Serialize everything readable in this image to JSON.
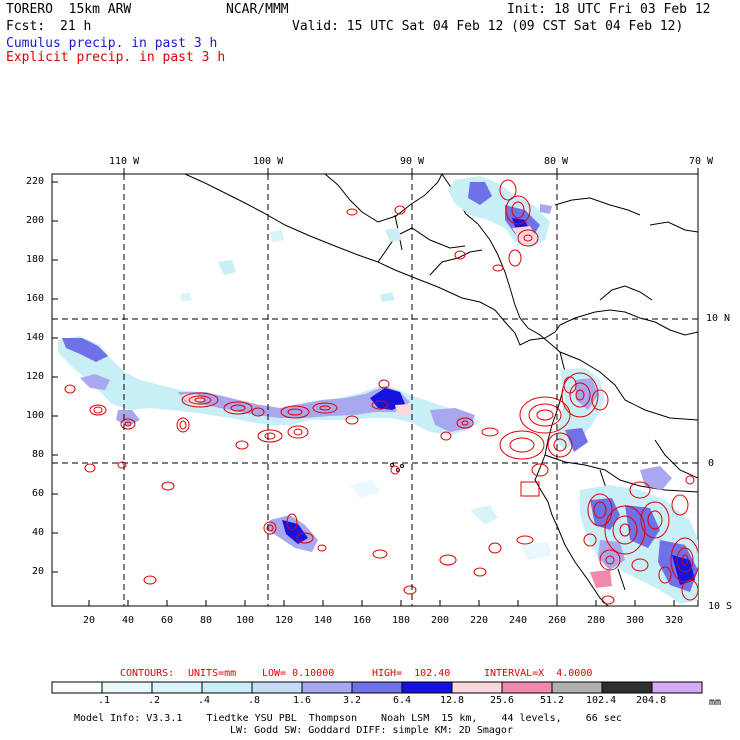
{
  "header": {
    "model": "TORERO  15km ARW",
    "org": "NCAR/MMM",
    "init": "Init: 18 UTC Fri 03 Feb 12",
    "fcst_label": "Fcst:",
    "fcst_value": "21 h",
    "valid": "Valid: 15 UTC Sat 04 Feb 12 (09 CST Sat 04 Feb 12)",
    "legend_cumulus": "Cumulus precip. in past 3 h",
    "legend_explicit": "Explicit precip. in past 3 h"
  },
  "colors": {
    "cumulus_text": "#1a1ac8",
    "explicit_text": "#e00000",
    "contour": "#e00000",
    "border": "#000000"
  },
  "map": {
    "lon_labels": [
      "110 W",
      "100 W",
      "90 W",
      "80 W",
      "70 W"
    ],
    "lat_labels": [
      "10 N",
      "0",
      "10 S"
    ],
    "y_ticks": [
      "220",
      "200",
      "180",
      "160",
      "140",
      "120",
      "100",
      "80",
      "60",
      "40",
      "20"
    ],
    "x_ticks": [
      "20",
      "40",
      "60",
      "80",
      "100",
      "120",
      "140",
      "160",
      "180",
      "200",
      "220",
      "240",
      "260",
      "280",
      "300",
      "320"
    ]
  },
  "contours_line": {
    "label": "CONTOURS:",
    "units": "UNITS=mm",
    "low": "LOW= 0.10000",
    "high": "HIGH=  102.40",
    "interval": "INTERVAL=X  4.0000"
  },
  "colorbar": {
    "colors": [
      "#ffffff",
      "#e8f8fc",
      "#d8f4fa",
      "#c8eef6",
      "#c8dcf8",
      "#a8a8f0",
      "#7070e8",
      "#1414e0",
      "#f8d8dc",
      "#f088b0",
      "#b0b0b0",
      "#303030",
      "#d8a8f8"
    ],
    "labels": [
      ".1",
      ".2",
      ".4",
      ".8",
      "1.6",
      "3.2",
      "6.4",
      "12.8",
      "25.6",
      "51.2",
      "102.4",
      "204.8"
    ],
    "unit": "mm"
  },
  "footer": {
    "line1": "Model Info: V3.3.1    Tiedtke YSU PBL  Thompson    Noah LSM  15 km,    44 levels,    66 sec",
    "line2": "LW: Godd SW: Goddard DIFF: simple KM: 2D Smagor"
  }
}
